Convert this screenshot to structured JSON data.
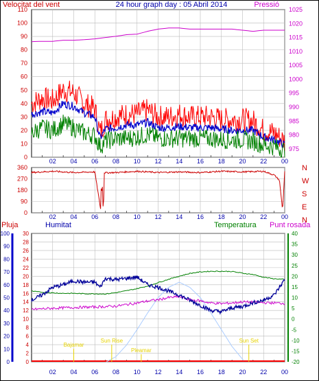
{
  "top": {
    "header": {
      "left": "Velocitat del vent",
      "center": "24 hour graph day : 05 Abril 2014",
      "right": "Pressió"
    },
    "colors": {
      "gust": "#ff0000",
      "speed": "#0000cc",
      "avg": "#008000",
      "pressure": "#cc00cc",
      "axis_left": "#cc0000",
      "axis_right": "#cc00cc",
      "grid": "#bbbbbb"
    }
  },
  "chart_data": [
    {
      "type": "line",
      "title": "24 hour graph day : 05 Abril 2014",
      "x": {
        "ticks": [
          "02",
          "04",
          "06",
          "08",
          "10",
          "12",
          "14",
          "16",
          "18",
          "20",
          "22",
          "00"
        ],
        "range_hours": [
          0,
          24
        ]
      },
      "y_left": {
        "label": "Velocitat del vent",
        "range": [
          0,
          110
        ],
        "ticks": [
          0,
          10,
          20,
          30,
          40,
          50,
          60,
          70,
          80,
          90,
          100,
          110
        ]
      },
      "y_right": {
        "label": "Pressió",
        "range": [
          972,
          1025
        ],
        "ticks": [
          975,
          980,
          985,
          990,
          995,
          1000,
          1005,
          1010,
          1015,
          1020,
          1025
        ]
      },
      "series": [
        {
          "name": "",
          "axis": "left",
          "color": "#ff0000",
          "x": [
            0,
            1,
            2,
            3,
            4,
            5,
            6,
            6.5,
            7,
            8,
            9,
            10,
            11,
            12,
            13,
            14,
            15,
            16,
            17,
            18,
            19,
            20,
            21,
            22,
            23,
            24
          ],
          "values": [
            40,
            44,
            42,
            50,
            48,
            40,
            36,
            18,
            28,
            30,
            32,
            32,
            35,
            30,
            30,
            32,
            30,
            30,
            30,
            28,
            28,
            28,
            27,
            20,
            18,
            12
          ]
        },
        {
          "name": "",
          "axis": "left",
          "color": "#0000cc",
          "x": [
            0,
            1,
            2,
            3,
            4,
            5,
            6,
            6.5,
            7,
            8,
            9,
            10,
            11,
            12,
            13,
            14,
            15,
            16,
            17,
            18,
            19,
            20,
            21,
            22,
            23,
            24
          ],
          "values": [
            32,
            34,
            33,
            40,
            38,
            33,
            30,
            14,
            21,
            22,
            24,
            24,
            26,
            22,
            22,
            23,
            22,
            22,
            22,
            21,
            20,
            20,
            20,
            15,
            13,
            9
          ]
        },
        {
          "name": "",
          "axis": "left",
          "color": "#008000",
          "x": [
            0,
            1,
            2,
            3,
            4,
            5,
            6,
            6.5,
            7,
            8,
            9,
            10,
            11,
            12,
            13,
            14,
            15,
            16,
            17,
            18,
            19,
            20,
            21,
            22,
            23,
            24
          ],
          "values": [
            18,
            22,
            20,
            25,
            22,
            18,
            16,
            8,
            12,
            14,
            14,
            15,
            17,
            14,
            14,
            14,
            14,
            14,
            14,
            13,
            13,
            13,
            12,
            9,
            8,
            5
          ]
        },
        {
          "name": "Pressió",
          "axis": "right",
          "color": "#cc00cc",
          "x": [
            0,
            1,
            2,
            3,
            4,
            5,
            6,
            7,
            8,
            9,
            10,
            11,
            12,
            13,
            14,
            15,
            16,
            17,
            18,
            19,
            20,
            21,
            22,
            23,
            24
          ],
          "values": [
            1013.5,
            1013.6,
            1013.6,
            1014,
            1014,
            1014.2,
            1014.5,
            1015,
            1015.4,
            1016,
            1016.2,
            1017.2,
            1018,
            1018.4,
            1018.4,
            1018,
            1018,
            1018,
            1018,
            1018,
            1017.6,
            1017.2,
            1017.6,
            1017.6,
            1017.6
          ]
        }
      ]
    },
    {
      "type": "line",
      "x": {
        "ticks": [
          "02",
          "04",
          "06",
          "08",
          "10",
          "12",
          "14",
          "16",
          "18",
          "20",
          "22",
          "00"
        ]
      },
      "y_left": {
        "range": [
          0,
          360
        ],
        "ticks": [
          0,
          90,
          180,
          270,
          360
        ]
      },
      "y_right": {
        "labels": [
          "N",
          "W",
          "S",
          "E",
          "N"
        ]
      },
      "series": [
        {
          "name": "",
          "color": "#cc0000",
          "x": [
            0,
            2,
            4,
            6,
            6.6,
            6.8,
            7,
            8,
            10,
            12,
            14,
            16,
            18,
            20,
            22,
            23,
            23.5,
            23.8,
            24
          ],
          "values": [
            320,
            330,
            320,
            325,
            0,
            320,
            318,
            320,
            330,
            320,
            325,
            320,
            330,
            325,
            330,
            300,
            260,
            20,
            330
          ]
        }
      ]
    },
    {
      "type": "line",
      "x": {
        "ticks": [
          "02",
          "04",
          "06",
          "08",
          "10",
          "12",
          "14",
          "16",
          "18",
          "20",
          "22",
          "00"
        ]
      },
      "y_left_outer": {
        "label": "Pluja",
        "range": [
          0,
          100
        ],
        "ticks": [
          0,
          10,
          20,
          30,
          40,
          50,
          60,
          70,
          80,
          90,
          100
        ]
      },
      "y_left_inner": {
        "label": "Humitat",
        "range": [
          0,
          30
        ],
        "ticks": [
          0,
          2,
          4,
          6,
          8,
          10,
          12,
          14,
          16,
          18,
          20,
          22,
          24,
          26,
          28,
          30
        ]
      },
      "y_right": {
        "label": "Temperatura",
        "range": [
          -20,
          40
        ],
        "ticks": [
          -20,
          -15,
          -10,
          -5,
          0,
          5,
          10,
          15,
          20,
          25,
          30,
          35,
          40
        ]
      },
      "header": {
        "pluja": "Pluja",
        "humitat": "Humitat",
        "temp": "Temperatura",
        "dew": "Punt rosada"
      },
      "annotations": {
        "baja": "Bajamar",
        "sunrise": "Sun Rise",
        "pleamar": "Pleamar",
        "sunset": "Sun Set"
      },
      "series": [
        {
          "name": "Humitat",
          "color": "#000099",
          "x": [
            0,
            1,
            2,
            3,
            4,
            5,
            6,
            6.5,
            7,
            8,
            9,
            10,
            11,
            12,
            13,
            14,
            15,
            16,
            17,
            18,
            19,
            20,
            21,
            22,
            23,
            24
          ],
          "values": [
            48,
            52,
            58,
            60,
            63,
            62,
            62,
            58,
            65,
            64,
            65,
            66,
            60,
            58,
            55,
            52,
            48,
            44,
            40,
            39,
            42,
            43,
            46,
            48,
            52,
            64
          ]
        },
        {
          "name": "Temperatura",
          "axis": "right",
          "color": "#008000",
          "x": [
            0,
            1,
            2,
            3,
            4,
            5,
            6,
            7,
            8,
            9,
            10,
            11,
            12,
            13,
            14,
            15,
            16,
            17,
            18,
            19,
            20,
            21,
            22,
            23,
            24
          ],
          "values": [
            13,
            12.5,
            12.2,
            12,
            12,
            11.8,
            11.8,
            11.7,
            12.3,
            13.2,
            14.2,
            15.4,
            17,
            18.6,
            20,
            21.3,
            22,
            22.3,
            22.3,
            22.2,
            21.4,
            20.8,
            19.5,
            18.8,
            18.5
          ]
        },
        {
          "name": "Punt rosada",
          "axis": "right",
          "color": "#cc00cc",
          "x": [
            0,
            2,
            4,
            6,
            8,
            10,
            11,
            12,
            13,
            14,
            15,
            16,
            17,
            18,
            19,
            20,
            21,
            22,
            23,
            24
          ],
          "values": [
            4.5,
            5,
            5.4,
            5.6,
            6,
            7.5,
            8.4,
            9,
            10,
            10.4,
            9,
            8.5,
            7.5,
            7.2,
            7.5,
            8,
            7.8,
            7.6,
            7.5,
            7.3
          ]
        },
        {
          "name": "",
          "color": "#aaccff",
          "x": [
            7.1,
            8,
            9,
            10,
            11,
            12,
            13,
            14,
            15,
            16,
            17,
            18,
            19,
            20,
            20.2
          ],
          "values": [
            0,
            4,
            13,
            25,
            38,
            50,
            58,
            62,
            58,
            50,
            38,
            25,
            12,
            2,
            0
          ]
        }
      ]
    }
  ]
}
